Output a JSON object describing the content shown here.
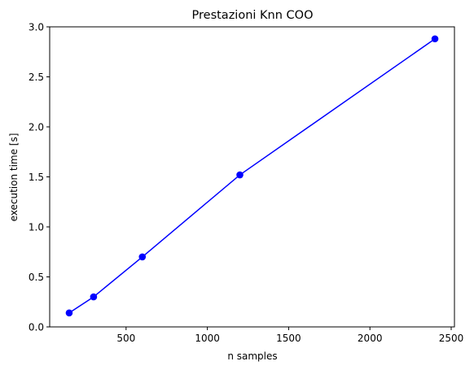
{
  "chart_data": {
    "type": "line",
    "title": "Prestazioni Knn COO",
    "xlabel": "n samples",
    "ylabel": "execution time [s]",
    "xlim": [
      30,
      2520
    ],
    "ylim": [
      0,
      3.0
    ],
    "xticks": [
      500,
      1000,
      1500,
      2000,
      2500
    ],
    "yticks": [
      0.0,
      0.5,
      1.0,
      1.5,
      2.0,
      2.5,
      3.0
    ],
    "xtick_labels": [
      "500",
      "1000",
      "1500",
      "2000",
      "2500"
    ],
    "ytick_labels": [
      "0.0",
      "0.5",
      "1.0",
      "1.5",
      "2.0",
      "2.5",
      "3.0"
    ],
    "grid": false,
    "series": [
      {
        "x": [
          150,
          300,
          600,
          1200,
          2400
        ],
        "y": [
          0.14,
          0.3,
          0.7,
          1.52,
          2.88
        ],
        "color": "#0000ff",
        "marker": "circle"
      }
    ]
  }
}
